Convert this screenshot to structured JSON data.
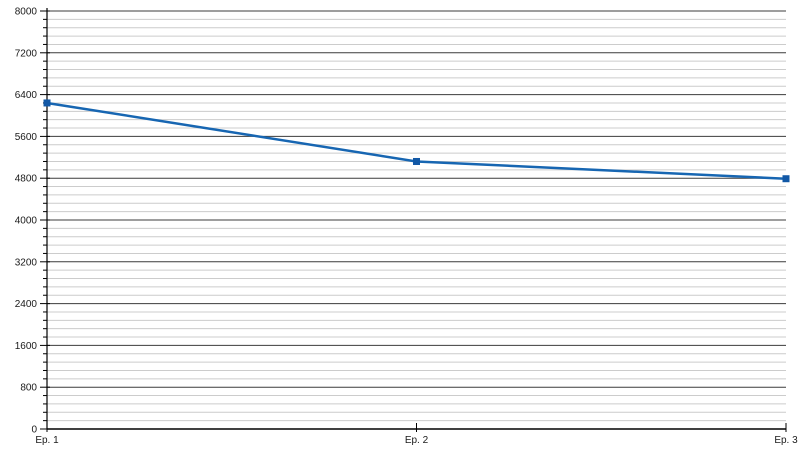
{
  "chart_data": {
    "type": "line",
    "title": "",
    "xlabel": "",
    "ylabel": "",
    "categories": [
      "Ep. 1",
      "Ep. 2",
      "Ep. 3"
    ],
    "values": [
      6240,
      5120,
      4790
    ],
    "marker_shape": "square",
    "ylim": [
      0,
      8000
    ],
    "y_major_interval": 800,
    "y_minor_interval": 160,
    "y_tick_labels": [
      "0",
      "800",
      "1600",
      "2400",
      "3200",
      "4000",
      "4800",
      "5600",
      "6400",
      "7200",
      "8000"
    ],
    "grid": {
      "major": true,
      "minor": true,
      "vertical": false
    },
    "legend": "none",
    "colors": {
      "line": "#1766b2",
      "marker": "#1258a6",
      "major_gridline": "#3c3c3c",
      "minor_gridline": "#cccccc",
      "axis": "#000000",
      "tick_label": "#1a1a1a",
      "background": "#ffffff"
    }
  }
}
